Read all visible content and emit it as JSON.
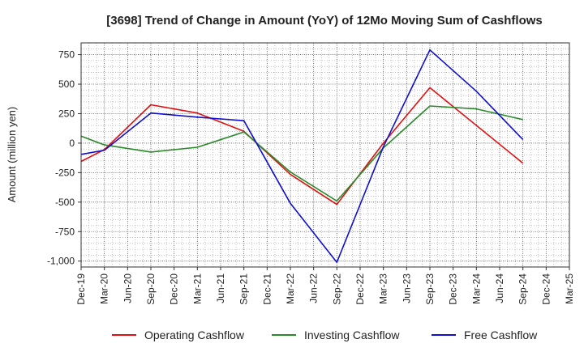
{
  "chart_data": {
    "type": "line",
    "title": "[3698]  Trend of Change in Amount (YoY) of 12Mo Moving Sum of Cashflows",
    "xlabel": "",
    "ylabel": "Amount (million yen)",
    "ylim": [
      -1050,
      850
    ],
    "yticks": [
      750,
      500,
      250,
      0,
      -250,
      -500,
      -750,
      -1000
    ],
    "ytick_labels": [
      "750",
      "500",
      "250",
      "0",
      "-250",
      "-500",
      "-750",
      "-1,000"
    ],
    "categories": [
      "Dec-19",
      "Mar-20",
      "Jun-20",
      "Sep-20",
      "Dec-20",
      "Mar-21",
      "Jun-21",
      "Sep-21",
      "Dec-21",
      "Mar-22",
      "Jun-22",
      "Sep-22",
      "Dec-22",
      "Mar-23",
      "Jun-23",
      "Sep-23",
      "Dec-23",
      "Mar-24",
      "Jun-24",
      "Sep-24",
      "Dec-24",
      "Mar-25"
    ],
    "grid": true,
    "legend_position": "bottom",
    "series": [
      {
        "name": "Operating Cashflow",
        "color": "#e01010",
        "points": [
          {
            "i": 0,
            "v": -155
          },
          {
            "i": 1,
            "v": -55
          },
          {
            "i": 3,
            "v": 325
          },
          {
            "i": 5,
            "v": 255
          },
          {
            "i": 7,
            "v": 100
          },
          {
            "i": 9,
            "v": -265
          },
          {
            "i": 11,
            "v": -520
          },
          {
            "i": 13,
            "v": 0
          },
          {
            "i": 15,
            "v": 470
          },
          {
            "i": 19,
            "v": -170
          }
        ]
      },
      {
        "name": "Investing Cashflow",
        "color": "#2a8a2a",
        "points": [
          {
            "i": 0,
            "v": 60
          },
          {
            "i": 1,
            "v": -15
          },
          {
            "i": 3,
            "v": -75
          },
          {
            "i": 5,
            "v": -35
          },
          {
            "i": 7,
            "v": 95
          },
          {
            "i": 9,
            "v": -245
          },
          {
            "i": 11,
            "v": -490
          },
          {
            "i": 13,
            "v": -40
          },
          {
            "i": 15,
            "v": 315
          },
          {
            "i": 17,
            "v": 290
          },
          {
            "i": 19,
            "v": 200
          }
        ]
      },
      {
        "name": "Free Cashflow",
        "color": "#1010cc",
        "points": [
          {
            "i": 0,
            "v": -95
          },
          {
            "i": 1,
            "v": -60
          },
          {
            "i": 3,
            "v": 255
          },
          {
            "i": 5,
            "v": 220
          },
          {
            "i": 7,
            "v": 190
          },
          {
            "i": 9,
            "v": -510
          },
          {
            "i": 11,
            "v": -1010
          },
          {
            "i": 13,
            "v": -30
          },
          {
            "i": 15,
            "v": 790
          },
          {
            "i": 17,
            "v": 440
          },
          {
            "i": 19,
            "v": 30
          }
        ]
      }
    ]
  }
}
